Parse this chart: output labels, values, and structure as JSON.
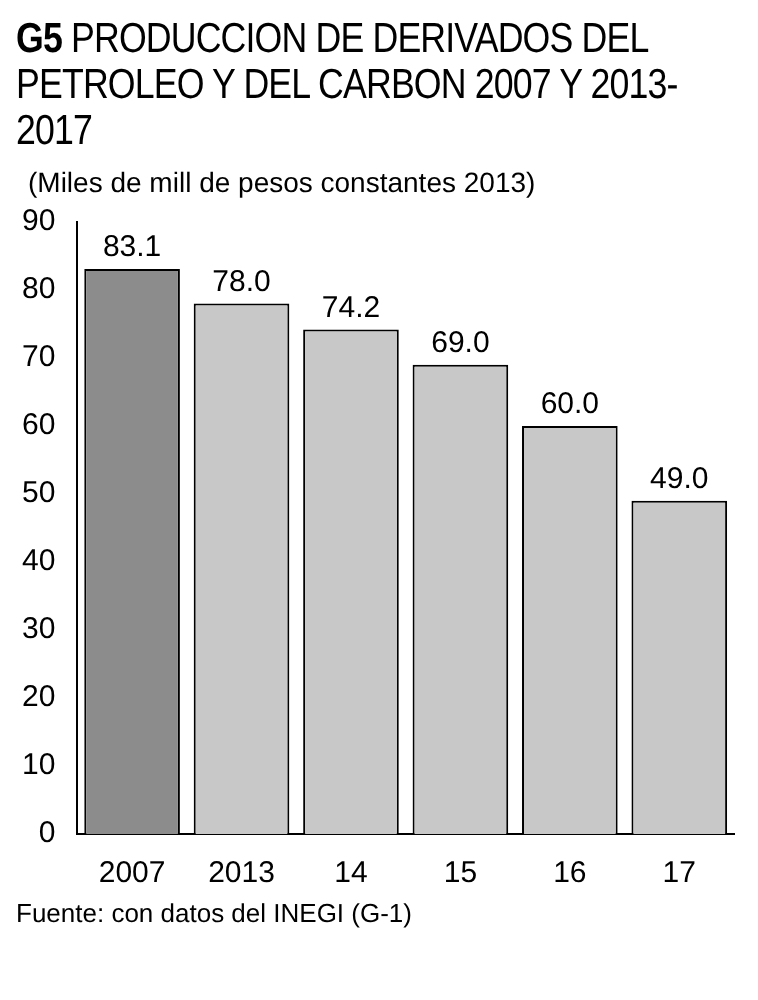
{
  "chart_data": {
    "type": "bar",
    "title": "G5  PRODUCCION DE DERIVADOS DEL PETROLEO Y DEL CARBON 2007 Y 2013-2017",
    "subtitle": "(Miles de mill de pesos constantes 2013)",
    "categories": [
      "2007",
      "2013",
      "14",
      "15",
      "16",
      "17"
    ],
    "values": [
      83.1,
      78.0,
      74.2,
      69.0,
      60.0,
      49.0
    ],
    "value_labels": [
      "83.1",
      "78.0",
      "74.2",
      "69.0",
      "60.0",
      "49.0"
    ],
    "colors": [
      "#8c8c8c",
      "#c8c8c8",
      "#c8c8c8",
      "#c8c8c8",
      "#c8c8c8",
      "#c8c8c8"
    ],
    "ylim": [
      0,
      90
    ],
    "yticks": [
      0,
      10,
      20,
      30,
      40,
      50,
      60,
      70,
      80,
      90
    ],
    "grid": false,
    "legend": false,
    "annotations": [
      "Fuente: con datos del INEGI (G-1)"
    ]
  }
}
